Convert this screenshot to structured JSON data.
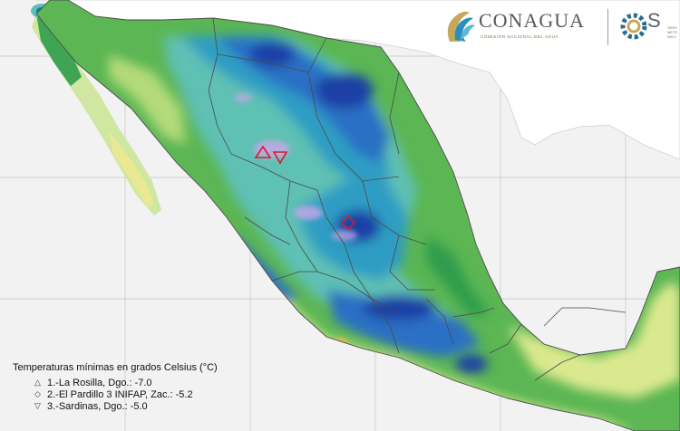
{
  "brand": {
    "conagua_name": "CONAGUA",
    "conagua_subtitle": "COMISIÓN NACIONAL DEL AGUA",
    "smn_initial": "S",
    "smn_partial": [
      "SERV",
      "METE",
      "NACI"
    ]
  },
  "legend": {
    "title": "Temperaturas mínimas en grados Celsius (°C)",
    "items": [
      {
        "symbol": "△",
        "shape": "triangle-up",
        "label": "1.-La Rosilla, Dgo.: -7.0",
        "value": -7.0
      },
      {
        "symbol": "◇",
        "shape": "diamond",
        "label": "2.-El Pardillo 3 INIFAP, Zac.: -5.2",
        "value": -5.2
      },
      {
        "symbol": "▽",
        "shape": "triangle-down",
        "label": "3.-Sardinas, Dgo.: -5.0",
        "value": -5.0
      }
    ]
  },
  "colors": {
    "sea": "#f2f2f2",
    "outside_land": "#ffffff",
    "temp_ramp": [
      "#f0e890",
      "#dbe98e",
      "#b4da7a",
      "#5bb653",
      "#2f9d4c",
      "#5fc0b4",
      "#2f9dc3",
      "#2b6fc4",
      "#1f3fa6",
      "#c7a7e6"
    ],
    "warmest_spot": "#f0b64c",
    "marker": "#d81b2a",
    "border": "#555555"
  }
}
